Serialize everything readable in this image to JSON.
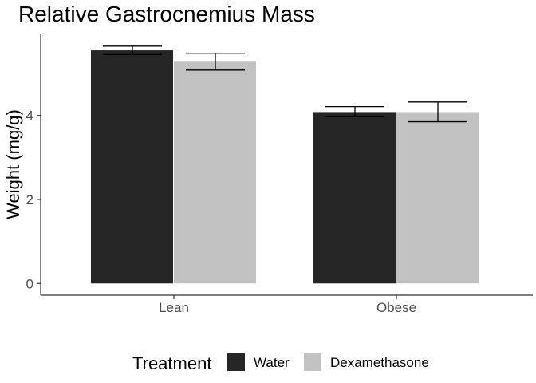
{
  "chart_data": {
    "type": "bar",
    "title": "Relative Gastrocnemius Mass",
    "xlabel": "",
    "ylabel": "Weight (mg/g)",
    "categories": [
      "Lean",
      "Obese"
    ],
    "series": [
      {
        "name": "Water",
        "values": [
          5.55,
          4.08
        ],
        "error_low": [
          5.45,
          3.97
        ],
        "error_high": [
          5.65,
          4.21
        ],
        "color": "#262626"
      },
      {
        "name": "Dexamethasone",
        "values": [
          5.28,
          4.08
        ],
        "error_low": [
          5.08,
          3.85
        ],
        "error_high": [
          5.48,
          4.32
        ],
        "color": "#c2c2c2"
      }
    ],
    "ylim": [
      -0.28,
      5.95
    ],
    "yticks": [
      0,
      2,
      4
    ],
    "ytick_labels": [
      "0",
      "2",
      "4"
    ],
    "grid": false,
    "legend": {
      "title": "Treatment",
      "position": "bottom",
      "entries": [
        "Water",
        "Dexamethasone"
      ]
    }
  }
}
